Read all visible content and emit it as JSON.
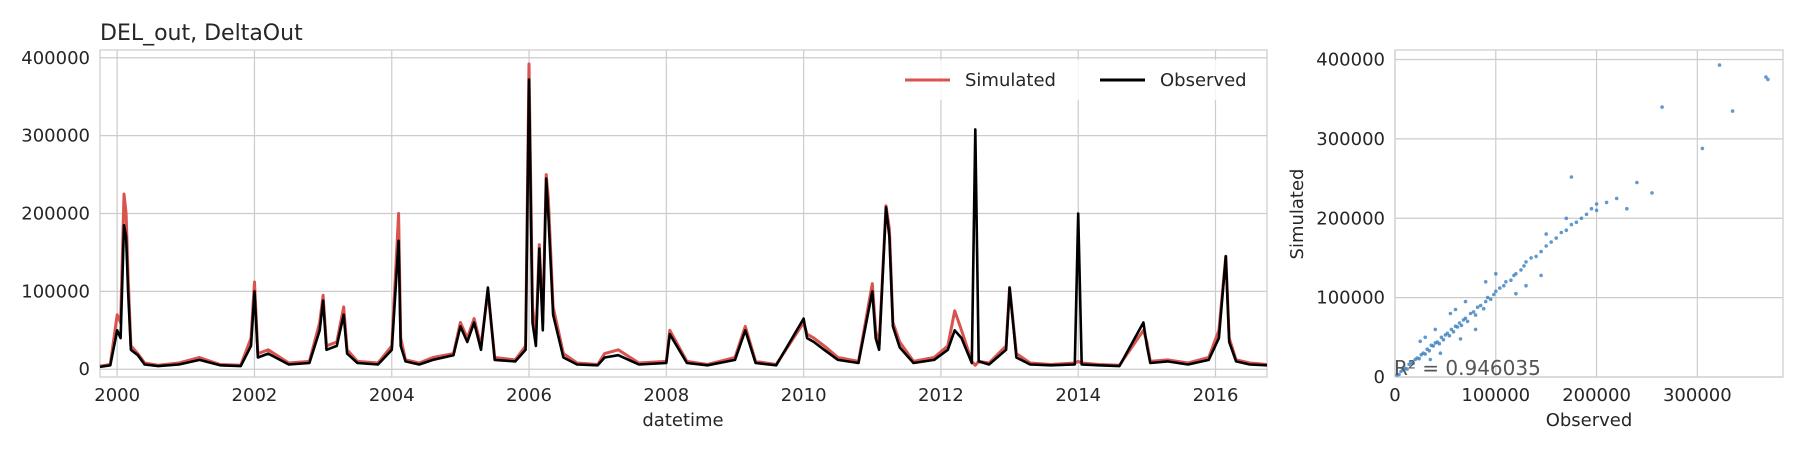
{
  "chart_data": [
    {
      "type": "line",
      "title": "DEL_out, DeltaOut",
      "xlabel": "datetime",
      "ylabel": "",
      "xlim": [
        1999.75,
        2016.75
      ],
      "ylim": [
        -10000,
        410000
      ],
      "grid": true,
      "legend": "top-right",
      "x_ticks": [
        "2000",
        "2002",
        "2004",
        "2006",
        "2008",
        "2010",
        "2012",
        "2014",
        "2016"
      ],
      "y_ticks": [
        "0",
        "100000",
        "200000",
        "300000",
        "400000"
      ],
      "series": [
        {
          "name": "Simulated",
          "color": "#d9534f",
          "x": [
            1999.75,
            1999.9,
            2000.0,
            2000.05,
            2000.1,
            2000.13,
            2000.16,
            2000.2,
            2000.3,
            2000.4,
            2000.6,
            2000.9,
            2001.2,
            2001.5,
            2001.8,
            2001.95,
            2002.0,
            2002.05,
            2002.2,
            2002.5,
            2002.8,
            2002.95,
            2003.0,
            2003.05,
            2003.2,
            2003.3,
            2003.35,
            2003.5,
            2003.8,
            2004.0,
            2004.1,
            2004.13,
            2004.2,
            2004.4,
            2004.6,
            2004.9,
            2005.0,
            2005.1,
            2005.2,
            2005.3,
            2005.4,
            2005.5,
            2005.8,
            2005.95,
            2006.0,
            2006.05,
            2006.1,
            2006.15,
            2006.2,
            2006.25,
            2006.28,
            2006.35,
            2006.5,
            2006.7,
            2007.0,
            2007.1,
            2007.3,
            2007.6,
            2008.0,
            2008.05,
            2008.3,
            2008.6,
            2009.0,
            2009.15,
            2009.3,
            2009.6,
            2010.0,
            2010.05,
            2010.15,
            2010.3,
            2010.5,
            2010.8,
            2011.0,
            2011.05,
            2011.1,
            2011.2,
            2011.25,
            2011.3,
            2011.4,
            2011.6,
            2011.9,
            2012.1,
            2012.2,
            2012.3,
            2012.45,
            2012.5,
            2012.55,
            2012.7,
            2012.95,
            2013.0,
            2013.1,
            2013.3,
            2013.6,
            2013.95,
            2014.0,
            2014.05,
            2014.3,
            2014.6,
            2014.95,
            2015.0,
            2015.05,
            2015.3,
            2015.6,
            2015.9,
            2016.05,
            2016.15,
            2016.2,
            2016.3,
            2016.5,
            2016.75
          ],
          "values": [
            4000,
            6000,
            70000,
            60000,
            225000,
            200000,
            120000,
            30000,
            20000,
            8000,
            5000,
            8000,
            15000,
            6000,
            5000,
            40000,
            112000,
            20000,
            25000,
            8000,
            10000,
            60000,
            95000,
            30000,
            35000,
            80000,
            25000,
            10000,
            8000,
            30000,
            200000,
            40000,
            12000,
            8000,
            15000,
            20000,
            60000,
            40000,
            65000,
            30000,
            100000,
            15000,
            12000,
            30000,
            392000,
            80000,
            40000,
            160000,
            60000,
            250000,
            220000,
            80000,
            20000,
            8000,
            6000,
            20000,
            25000,
            8000,
            10000,
            50000,
            10000,
            6000,
            15000,
            55000,
            10000,
            6000,
            60000,
            45000,
            40000,
            30000,
            15000,
            10000,
            110000,
            50000,
            30000,
            210000,
            180000,
            60000,
            35000,
            10000,
            15000,
            30000,
            75000,
            50000,
            10000,
            5000,
            10000,
            8000,
            30000,
            105000,
            20000,
            8000,
            6000,
            8000,
            10000,
            8000,
            6000,
            5000,
            50000,
            35000,
            10000,
            12000,
            8000,
            15000,
            50000,
            145000,
            40000,
            12000,
            8000,
            6000
          ]
        },
        {
          "name": "Observed",
          "color": "#000000",
          "x": [
            1999.75,
            1999.9,
            2000.0,
            2000.05,
            2000.1,
            2000.13,
            2000.16,
            2000.2,
            2000.3,
            2000.4,
            2000.6,
            2000.9,
            2001.2,
            2001.5,
            2001.8,
            2001.95,
            2002.0,
            2002.05,
            2002.2,
            2002.5,
            2002.8,
            2002.95,
            2003.0,
            2003.05,
            2003.2,
            2003.3,
            2003.35,
            2003.5,
            2003.8,
            2004.0,
            2004.1,
            2004.13,
            2004.2,
            2004.4,
            2004.6,
            2004.9,
            2005.0,
            2005.1,
            2005.2,
            2005.3,
            2005.4,
            2005.5,
            2005.8,
            2005.95,
            2006.0,
            2006.05,
            2006.1,
            2006.15,
            2006.2,
            2006.25,
            2006.28,
            2006.35,
            2006.5,
            2006.7,
            2007.0,
            2007.1,
            2007.3,
            2007.6,
            2008.0,
            2008.05,
            2008.3,
            2008.6,
            2009.0,
            2009.15,
            2009.3,
            2009.6,
            2010.0,
            2010.05,
            2010.15,
            2010.3,
            2010.5,
            2010.8,
            2011.0,
            2011.05,
            2011.1,
            2011.2,
            2011.25,
            2011.3,
            2011.4,
            2011.6,
            2011.9,
            2012.1,
            2012.2,
            2012.3,
            2012.45,
            2012.5,
            2012.55,
            2012.7,
            2012.95,
            2013.0,
            2013.1,
            2013.3,
            2013.6,
            2013.95,
            2014.0,
            2014.05,
            2014.3,
            2014.6,
            2014.95,
            2015.0,
            2015.05,
            2015.3,
            2015.6,
            2015.9,
            2016.05,
            2016.15,
            2016.2,
            2016.3,
            2016.5,
            2016.75
          ],
          "values": [
            3000,
            5000,
            50000,
            40000,
            185000,
            170000,
            100000,
            25000,
            18000,
            6000,
            4000,
            6000,
            12000,
            5000,
            4000,
            30000,
            100000,
            15000,
            20000,
            6000,
            8000,
            50000,
            88000,
            25000,
            30000,
            70000,
            20000,
            8000,
            6000,
            25000,
            165000,
            30000,
            10000,
            6000,
            12000,
            18000,
            55000,
            35000,
            60000,
            25000,
            105000,
            12000,
            10000,
            25000,
            372000,
            60000,
            30000,
            155000,
            50000,
            245000,
            200000,
            70000,
            15000,
            6000,
            5000,
            15000,
            18000,
            6000,
            8000,
            45000,
            8000,
            5000,
            12000,
            50000,
            8000,
            5000,
            65000,
            40000,
            35000,
            25000,
            12000,
            8000,
            100000,
            40000,
            25000,
            208000,
            170000,
            55000,
            28000,
            8000,
            12000,
            25000,
            50000,
            40000,
            8000,
            308000,
            10000,
            6000,
            25000,
            105000,
            15000,
            6000,
            5000,
            6000,
            200000,
            6000,
            5000,
            4000,
            60000,
            30000,
            8000,
            10000,
            6000,
            12000,
            40000,
            145000,
            35000,
            10000,
            6000,
            5000
          ]
        }
      ]
    },
    {
      "type": "scatter",
      "title": "",
      "xlabel": "Observed",
      "ylabel": "Simulated",
      "xlim": [
        0,
        385000
      ],
      "ylim": [
        0,
        412000
      ],
      "grid": true,
      "color": "#3a7fbf",
      "x_ticks": [
        "0",
        "100000",
        "200000",
        "300000"
      ],
      "y_ticks": [
        "0",
        "100000",
        "200000",
        "300000",
        "400000"
      ],
      "annotation": "R² = 0.946035",
      "points": [
        [
          2000,
          2500
        ],
        [
          4000,
          3000
        ],
        [
          6000,
          7000
        ],
        [
          8000,
          9000
        ],
        [
          10000,
          11000
        ],
        [
          12000,
          10000
        ],
        [
          14000,
          16000
        ],
        [
          16000,
          18000
        ],
        [
          18000,
          17000
        ],
        [
          20000,
          22000
        ],
        [
          22000,
          24000
        ],
        [
          24000,
          23000
        ],
        [
          26000,
          28000
        ],
        [
          28000,
          30000
        ],
        [
          30000,
          29000
        ],
        [
          32000,
          35000
        ],
        [
          34000,
          33000
        ],
        [
          36000,
          40000
        ],
        [
          38000,
          39000
        ],
        [
          40000,
          43000
        ],
        [
          42000,
          44000
        ],
        [
          44000,
          42000
        ],
        [
          46000,
          50000
        ],
        [
          48000,
          47000
        ],
        [
          50000,
          53000
        ],
        [
          52000,
          55000
        ],
        [
          54000,
          52000
        ],
        [
          56000,
          60000
        ],
        [
          58000,
          57000
        ],
        [
          60000,
          64000
        ],
        [
          62000,
          63000
        ],
        [
          64000,
          68000
        ],
        [
          66000,
          65000
        ],
        [
          68000,
          72000
        ],
        [
          70000,
          74000
        ],
        [
          72000,
          70000
        ],
        [
          75000,
          80000
        ],
        [
          78000,
          82000
        ],
        [
          80000,
          78000
        ],
        [
          82000,
          88000
        ],
        [
          85000,
          90000
        ],
        [
          88000,
          86000
        ],
        [
          90000,
          95000
        ],
        [
          92000,
          100000
        ],
        [
          95000,
          98000
        ],
        [
          98000,
          104000
        ],
        [
          100000,
          108000
        ],
        [
          104000,
          112000
        ],
        [
          108000,
          115000
        ],
        [
          110000,
          120000
        ],
        [
          115000,
          122000
        ],
        [
          118000,
          128000
        ],
        [
          120000,
          130000
        ],
        [
          125000,
          135000
        ],
        [
          128000,
          140000
        ],
        [
          130000,
          145000
        ],
        [
          135000,
          150000
        ],
        [
          140000,
          152000
        ],
        [
          145000,
          158000
        ],
        [
          150000,
          165000
        ],
        [
          155000,
          170000
        ],
        [
          160000,
          175000
        ],
        [
          165000,
          182000
        ],
        [
          170000,
          185000
        ],
        [
          175000,
          192000
        ],
        [
          180000,
          195000
        ],
        [
          185000,
          200000
        ],
        [
          190000,
          205000
        ],
        [
          195000,
          212000
        ],
        [
          200000,
          218000
        ],
        [
          210000,
          220000
        ],
        [
          220000,
          225000
        ],
        [
          240000,
          245000
        ],
        [
          255000,
          232000
        ],
        [
          265000,
          340000
        ],
        [
          305000,
          288000
        ],
        [
          322000,
          393000
        ],
        [
          335000,
          335000
        ],
        [
          368000,
          378000
        ],
        [
          370000,
          375000
        ],
        [
          30000,
          50000
        ],
        [
          40000,
          60000
        ],
        [
          25000,
          45000
        ],
        [
          60000,
          85000
        ],
        [
          70000,
          95000
        ],
        [
          55000,
          80000
        ],
        [
          90000,
          120000
        ],
        [
          100000,
          130000
        ],
        [
          45000,
          30000
        ],
        [
          65000,
          48000
        ],
        [
          80000,
          60000
        ],
        [
          35000,
          22000
        ],
        [
          120000,
          105000
        ],
        [
          145000,
          128000
        ],
        [
          170000,
          200000
        ],
        [
          175000,
          252000
        ],
        [
          150000,
          180000
        ],
        [
          130000,
          115000
        ],
        [
          200000,
          210000
        ],
        [
          230000,
          212000
        ]
      ]
    }
  ]
}
